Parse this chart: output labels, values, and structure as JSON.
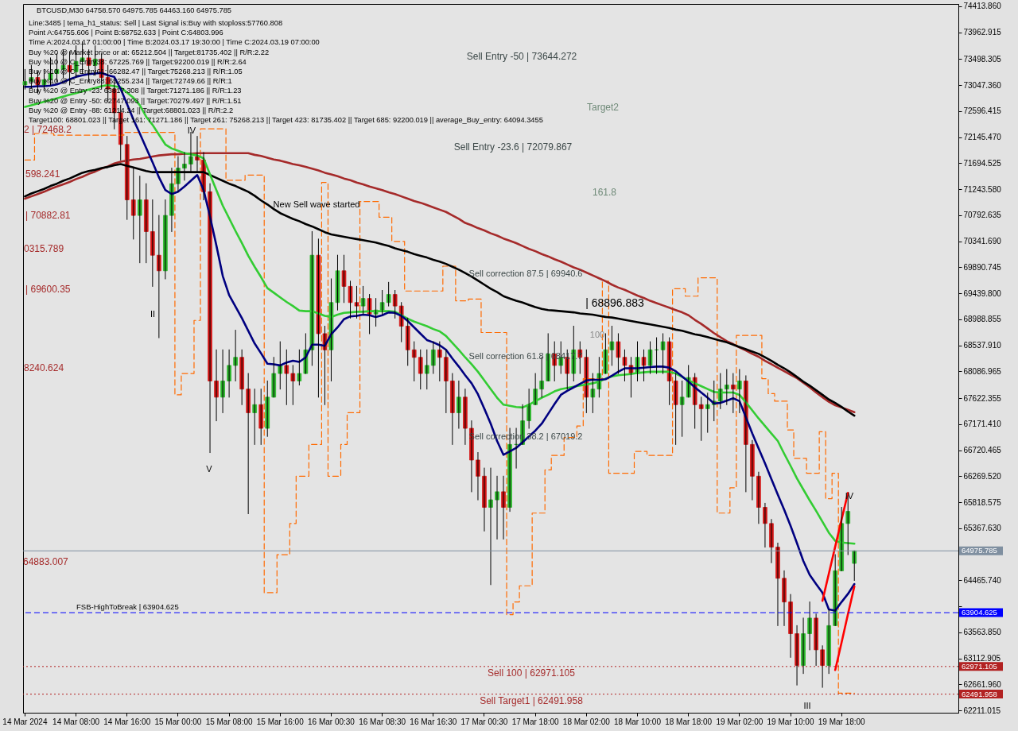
{
  "chart_data": {
    "type": "candlestick",
    "title": "BTCUSD,M30 64758.570 64975.785 64463.160 64975.785",
    "annotations": [
      "Line:3485 | tema_h1_status: Sell | Last Signal is:Buy with stoploss:57760.808",
      "Point A:64755.606 | Point B:68752.633 | Point C:64803.996",
      "Time A:2024.03.17 01:00:00 | Time B:2024.03.17 19:30:00 | Time C:2024.03.19 07:00:00",
      "Buy %20 @ Market price or at: 65212.504 || Target:81735.402 || R/R:2.22",
      "Buy %10 @ C_Entry38: 67225.769 || Target:92200.019 || R/R:2.64",
      "Buy %10 @ C_Entry61: 66282.47 || Target:75268.213 || R/R:1.05",
      "Buy %10 @ C_Entry88: 65255.234 || Target:72749.66 || R/R:1",
      "Buy %20 @ Entry -23: 63817.308 || Target:71271.186 || R/R:1.23",
      "Buy %20 @ Entry -50: 62747.093 || Target:70279.497 || R/R:1.51",
      "Buy %20 @ Entry -88: 61214.24 || Target:68801.023 || R/R:2.2",
      "Target100: 68801.023 || Target 161: 71271.186 || Target 261: 75268.213 || Target 423: 81735.402 || Target 685: 92200.019 || average_Buy_entry: 64094.3455",
      "Sell Entry -50 | 73644.272",
      "Target2",
      "Sell Entry -23.6 | 72079.867",
      "161.8",
      "New Sell wave started",
      "Sell correction 87.5 | 69940.6",
      "| 68896.883",
      "100",
      "Sell correction 61.8 | 68417.7",
      "Sell correction 38.2 | 67019.2",
      {
        "text": "FSB-HighToBreak | 63904.625",
        "y": 63904.625
      },
      {
        "text": "Sell 100 | 62971.105",
        "y": 62971.105
      },
      {
        "text": "Sell Target1 | 62491.958",
        "y": 62491.958
      },
      "2 | 72468.2",
      "598.241",
      "| 70882.81",
      "0315.789",
      "| 69600.35",
      "8240.624",
      "64883.007",
      "IV",
      "II",
      "V",
      "IV",
      "III"
    ],
    "categories": [
      "14 Mar 2024",
      null,
      null,
      null,
      null,
      null,
      null,
      null,
      "14 Mar 08:00",
      null,
      null,
      null,
      null,
      null,
      null,
      null,
      "14 Mar 16:00",
      null,
      null,
      null,
      null,
      null,
      null,
      null,
      "15 Mar 00:00",
      null,
      null,
      null,
      null,
      null,
      null,
      null,
      "15 Mar 08:00",
      null,
      null,
      null,
      null,
      null,
      null,
      null,
      "15 Mar 16:00",
      null,
      null,
      null,
      null,
      null,
      null,
      null,
      "16 Mar 00:30",
      null,
      null,
      null,
      null,
      null,
      null,
      null,
      "16 Mar 08:30",
      null,
      null,
      null,
      null,
      null,
      null,
      null,
      "16 Mar 16:30",
      null,
      null,
      null,
      null,
      null,
      null,
      null,
      "17 Mar 00:30",
      null,
      null,
      null,
      null,
      null,
      null,
      null,
      "17 Mar 18:00",
      null,
      null,
      null,
      null,
      null,
      null,
      null,
      "18 Mar 02:00",
      null,
      null,
      null,
      null,
      null,
      null,
      null,
      "18 Mar 10:00",
      null,
      null,
      null,
      null,
      null,
      null,
      null,
      "18 Mar 18:00",
      null,
      null,
      null,
      null,
      null,
      null,
      null,
      "19 Mar 02:00",
      null,
      null,
      null,
      null,
      null,
      null,
      null,
      "19 Mar 10:00",
      null,
      null,
      null,
      null,
      null,
      null,
      null,
      "19 Mar 18:00",
      null,
      null,
      null,
      null,
      null,
      null,
      null,
      null,
      null,
      null,
      null,
      null,
      null,
      null,
      null,
      null,
      null,
      null
    ],
    "ylim": [
      62170,
      74455
    ],
    "yticks": [
      {
        "value": 74413.86,
        "label": "74413.860"
      },
      73962.915,
      73498.305,
      {
        "value": 73047.36,
        "label": "73047.360"
      },
      72596.415,
      {
        "value": 72145.47,
        "label": "72145.470"
      },
      71694.525,
      {
        "value": 71243.58,
        "label": "71243.580"
      },
      70792.635,
      {
        "value": 70341.69,
        "label": "70341.690"
      },
      69890.745,
      {
        "value": 69439.8,
        "label": "69439.800"
      },
      68988.855,
      {
        "value": 68537.91,
        "label": "68537.910"
      },
      68086.965,
      67622.355,
      {
        "value": 67171.41,
        "label": "67171.410"
      },
      66720.465,
      {
        "value": 66269.52,
        "label": "66269.520"
      },
      65818.575,
      {
        "value": 65367.63,
        "label": "65367.630"
      },
      {
        "value": 64465.74,
        "label": "64465.740"
      },
      {
        "value": 64014.795,
        "label": null
      },
      {
        "value": 63563.85,
        "label": "63563.850"
      },
      63112.905,
      {
        "value": 62661.96,
        "label": "62661.960"
      },
      62211.015
    ],
    "ref_lines": [
      {
        "axis": "y",
        "value": 64975.785,
        "label": "64975.785",
        "color": "#7f8fa0"
      },
      {
        "axis": "y",
        "value": 63904.625,
        "label": "63904.625",
        "color": "#0000ff",
        "line_style": "dashed"
      },
      {
        "axis": "y",
        "value": 62971.105,
        "label": "62971.105",
        "color": "#b22222",
        "line_style": "dotted"
      },
      {
        "axis": "y",
        "value": 62491.958,
        "label": "62491.958",
        "color": "#b22222",
        "line_style": "dotted"
      }
    ],
    "color": "#000000",
    "ohlc": [
      [
        73050,
        73320,
        72980,
        73110
      ],
      [
        73110,
        73390,
        73000,
        73180
      ],
      [
        73180,
        73280,
        72910,
        73050
      ],
      [
        73050,
        73320,
        72950,
        73140
      ],
      [
        73140,
        73520,
        73050,
        73250
      ],
      [
        73250,
        73590,
        73110,
        73320
      ],
      [
        73320,
        73660,
        73180,
        73390
      ],
      [
        73390,
        73630,
        73050,
        73280
      ],
      [
        73280,
        73730,
        73180,
        73460
      ],
      [
        73460,
        73800,
        73250,
        73520
      ],
      [
        73520,
        73660,
        73110,
        73390
      ],
      [
        73390,
        73730,
        73220,
        73500
      ],
      [
        73500,
        73590,
        72980,
        73180
      ],
      [
        73180,
        73390,
        72770,
        72980
      ],
      [
        72980,
        73110,
        72290,
        72570
      ],
      [
        72570,
        72700,
        71750,
        72020
      ],
      [
        72020,
        72160,
        70720,
        71060
      ],
      [
        71060,
        71610,
        70380,
        70790
      ],
      [
        70790,
        71470,
        69970,
        71060
      ],
      [
        71060,
        71340,
        69970,
        70510
      ],
      [
        70510,
        71060,
        69560,
        70100
      ],
      [
        70100,
        70790,
        68670,
        69830
      ],
      [
        69830,
        71060,
        69690,
        70790
      ],
      [
        70790,
        71610,
        70510,
        71340
      ],
      [
        71340,
        71810,
        71200,
        71610
      ],
      [
        71610,
        71880,
        71400,
        71680
      ],
      [
        71680,
        72230,
        71540,
        71810
      ],
      [
        71810,
        72160,
        71540,
        71750
      ],
      [
        71750,
        71880,
        71060,
        71200
      ],
      [
        71200,
        71340,
        66680,
        67920
      ],
      [
        67920,
        68460,
        67230,
        67640
      ],
      [
        67640,
        68460,
        67370,
        67920
      ],
      [
        67920,
        68460,
        67640,
        68190
      ],
      [
        68190,
        68800,
        67920,
        68330
      ],
      [
        68330,
        68460,
        67510,
        67780
      ],
      [
        67780,
        68050,
        65620,
        67370
      ],
      [
        67370,
        67780,
        66820,
        67510
      ],
      [
        67510,
        67780,
        66820,
        67100
      ],
      [
        67100,
        67920,
        66960,
        67640
      ],
      [
        67640,
        68330,
        67640,
        68050
      ],
      [
        68050,
        68600,
        67780,
        68190
      ],
      [
        68190,
        68460,
        67510,
        68050
      ],
      [
        68050,
        68190,
        67510,
        67920
      ],
      [
        67920,
        68460,
        67850,
        68050
      ],
      [
        68050,
        68740,
        68050,
        68460
      ],
      [
        68460,
        70510,
        68190,
        70100
      ],
      [
        70100,
        70380,
        67640,
        68740
      ],
      [
        68740,
        68870,
        67510,
        68460
      ],
      [
        68460,
        69690,
        67920,
        69280
      ],
      [
        69280,
        70100,
        69150,
        69830
      ],
      [
        69830,
        70100,
        69280,
        69560
      ],
      [
        69560,
        69650,
        69010,
        69280
      ],
      [
        69280,
        69560,
        69010,
        69220
      ],
      [
        69220,
        69560,
        69080,
        69350
      ],
      [
        69350,
        69420,
        68740,
        69080
      ],
      [
        69080,
        69350,
        68870,
        69150
      ],
      [
        69150,
        69490,
        69080,
        69280
      ],
      [
        69280,
        69630,
        69220,
        69420
      ],
      [
        69420,
        69490,
        69010,
        69220
      ],
      [
        69220,
        69280,
        68600,
        68870
      ],
      [
        68870,
        69010,
        68190,
        68460
      ],
      [
        68460,
        68600,
        67920,
        68330
      ],
      [
        68330,
        68460,
        67780,
        68050
      ],
      [
        68050,
        68460,
        67780,
        68190
      ],
      [
        68190,
        68600,
        68050,
        68460
      ],
      [
        68460,
        68600,
        67920,
        68330
      ],
      [
        68330,
        68460,
        67370,
        67920
      ],
      [
        67920,
        68050,
        66820,
        67370
      ],
      [
        67370,
        67920,
        67100,
        67640
      ],
      [
        67640,
        67780,
        66820,
        67100
      ],
      [
        67100,
        67230,
        66000,
        66550
      ],
      [
        66550,
        66680,
        65860,
        66270
      ],
      [
        66270,
        66410,
        65320,
        65730
      ],
      [
        65730,
        66410,
        64390,
        65860
      ],
      [
        65860,
        66270,
        65180,
        66000
      ],
      [
        66000,
        66270,
        65180,
        65730
      ],
      [
        65730,
        67100,
        65660,
        66820
      ],
      [
        66820,
        67100,
        66410,
        66820
      ],
      [
        66820,
        67510,
        66820,
        67230
      ],
      [
        67230,
        67780,
        67100,
        67510
      ],
      [
        67510,
        68050,
        67510,
        67780
      ],
      [
        67780,
        68330,
        67640,
        67920
      ],
      [
        67920,
        68740,
        67920,
        68390
      ],
      [
        68390,
        68600,
        67920,
        68190
      ],
      [
        68190,
        68600,
        68050,
        68330
      ],
      [
        68330,
        68460,
        67780,
        68050
      ],
      [
        68050,
        68870,
        67920,
        68460
      ],
      [
        68460,
        68600,
        68050,
        68330
      ],
      [
        68330,
        68460,
        67370,
        67640
      ],
      [
        67640,
        68050,
        67370,
        67780
      ],
      [
        67780,
        68330,
        67640,
        68050
      ],
      [
        68050,
        68740,
        68050,
        68460
      ],
      [
        68460,
        68870,
        68190,
        68600
      ],
      [
        68600,
        68740,
        68050,
        68330
      ],
      [
        68330,
        68460,
        67920,
        68190
      ],
      [
        68190,
        68330,
        67640,
        68050
      ],
      [
        68050,
        68600,
        67920,
        68330
      ],
      [
        68330,
        68460,
        67920,
        68190
      ],
      [
        68190,
        68600,
        68050,
        68460
      ],
      [
        68460,
        68670,
        68050,
        68460
      ],
      [
        68460,
        68740,
        68050,
        68600
      ],
      [
        68600,
        68670,
        67510,
        67920
      ],
      [
        67920,
        68050,
        66820,
        67510
      ],
      [
        67510,
        67920,
        66960,
        67640
      ],
      [
        67640,
        68190,
        67640,
        67980
      ],
      [
        67980,
        68050,
        67100,
        67510
      ],
      [
        67510,
        67640,
        66890,
        67440
      ],
      [
        67440,
        67710,
        67030,
        67510
      ],
      [
        67510,
        67920,
        67230,
        67570
      ],
      [
        67570,
        68050,
        67440,
        67780
      ],
      [
        67780,
        68120,
        67510,
        67850
      ],
      [
        67850,
        68050,
        67370,
        67780
      ],
      [
        67780,
        68120,
        67370,
        67920
      ],
      [
        67920,
        68010,
        66000,
        66820
      ],
      [
        66820,
        66890,
        65860,
        66270
      ],
      [
        66270,
        66340,
        65450,
        65730
      ],
      [
        65730,
        65800,
        65040,
        65450
      ],
      [
        65450,
        65520,
        64770,
        65040
      ],
      [
        65040,
        65110,
        63680,
        64500
      ],
      [
        64500,
        64630,
        63680,
        64090
      ],
      [
        64090,
        64220,
        63130,
        63540
      ],
      [
        63540,
        63680,
        62650,
        62990
      ],
      [
        62990,
        63810,
        62850,
        63540
      ],
      [
        63540,
        64090,
        63260,
        63810
      ],
      [
        63810,
        63880,
        62990,
        63260
      ],
      [
        63260,
        63330,
        62610,
        62990
      ],
      [
        62990,
        63950,
        62850,
        63680
      ],
      [
        63680,
        64910,
        63680,
        64630
      ],
      [
        64630,
        65730,
        64630,
        65450
      ],
      [
        65450,
        65930,
        64910,
        65660
      ],
      [
        64758.57,
        64975.785,
        64463.16,
        64975.785
      ],
      null,
      null,
      null,
      null,
      null,
      null,
      null,
      null,
      null,
      null,
      null,
      null,
      null,
      null,
      null,
      null
    ],
    "colors": [
      "#2ab52a",
      "#2ab52a",
      "#d41515",
      "#2ab52a",
      "#2ab52a",
      "#2ab52a",
      "#2ab52a",
      "#d41515",
      "#2ab52a",
      "#2ab52a",
      "#d41515",
      "#2ab52a",
      "#d41515",
      "#d41515",
      "#d41515",
      "#d41515",
      "#d41515",
      "#d41515",
      "#2ab52a",
      "#d41515",
      "#d41515",
      "#d41515",
      "#2ab52a",
      "#2ab52a",
      "#2ab52a",
      "#2ab52a",
      "#2ab52a",
      "#d41515",
      "#d41515",
      "#d41515",
      "#d41515",
      "#2ab52a",
      "#2ab52a",
      "#2ab52a",
      "#d41515",
      "#d41515",
      "#2ab52a",
      "#d41515",
      "#2ab52a",
      "#2ab52a",
      "#2ab52a",
      "#d41515",
      "#d41515",
      "#2ab52a",
      "#2ab52a",
      "#2ab52a",
      "#d41515",
      "#d41515",
      "#2ab52a",
      "#2ab52a",
      "#d41515",
      "#d41515",
      "#d41515",
      "#2ab52a",
      "#d41515",
      "#2ab52a",
      "#2ab52a",
      "#2ab52a",
      "#d41515",
      "#d41515",
      "#d41515",
      "#d41515",
      "#d41515",
      "#2ab52a",
      "#2ab52a",
      "#d41515",
      "#d41515",
      "#d41515",
      "#2ab52a",
      "#d41515",
      "#d41515",
      "#d41515",
      "#d41515",
      "#2ab52a",
      "#2ab52a",
      "#d41515",
      "#2ab52a",
      "#2ab52a",
      "#2ab52a",
      "#2ab52a",
      "#2ab52a",
      "#2ab52a",
      "#2ab52a",
      "#d41515",
      "#2ab52a",
      "#d41515",
      "#2ab52a",
      "#d41515",
      "#d41515",
      "#2ab52a",
      "#2ab52a",
      "#2ab52a",
      "#2ab52a",
      "#d41515",
      "#d41515",
      "#d41515",
      "#2ab52a",
      "#d41515",
      "#2ab52a",
      "#2ab52a",
      "#2ab52a",
      "#d41515",
      "#d41515",
      "#2ab52a",
      "#2ab52a",
      "#d41515",
      "#d41515",
      "#2ab52a",
      "#2ab52a",
      "#2ab52a",
      "#2ab52a",
      "#d41515",
      "#2ab52a",
      "#d41515",
      "#d41515",
      "#d41515",
      "#d41515",
      "#d41515",
      "#d41515",
      "#d41515",
      "#d41515",
      "#d41515",
      "#2ab52a",
      "#2ab52a",
      "#d41515",
      "#d41515",
      "#2ab52a",
      "#2ab52a",
      "#2ab52a",
      "#2ab52a",
      "#2ab52a",
      null,
      null,
      null,
      null,
      null,
      null,
      null,
      null,
      null,
      null,
      null,
      null,
      null,
      null,
      null,
      null
    ],
    "series": [
      {
        "type": "step",
        "color": "#ff6a00",
        "line_style": "dashed",
        "values": [
          71750,
          71750,
          72210,
          72210,
          72210,
          72180,
          72180,
          72180,
          72180,
          72180,
          72180,
          72180,
          72180,
          72180,
          72180,
          72180,
          72230,
          72230,
          72230,
          72230,
          72230,
          72230,
          72230,
          72230,
          67680,
          68050,
          68050,
          68970,
          72290,
          72290,
          72290,
          72290,
          71400,
          71400,
          71400,
          71490,
          71490,
          71490,
          64250,
          64250,
          64910,
          64910,
          65450,
          66270,
          66270,
          66820,
          66820,
          71360,
          66270,
          66270,
          66820,
          67370,
          67370,
          71030,
          71030,
          71030,
          70760,
          70760,
          70340,
          70340,
          69480,
          69480,
          69480,
          69480,
          69480,
          69480,
          69910,
          69910,
          69310,
          69310,
          69340,
          69340,
          68760,
          68760,
          68760,
          68760,
          63870,
          64090,
          64370,
          64370,
          65630,
          65630,
          66380,
          66630,
          66630,
          66940,
          66940,
          67140,
          67960,
          67960,
          67960,
          69650,
          66320,
          66320,
          66320,
          66320,
          66700,
          66700,
          66630,
          66630,
          66630,
          66630,
          69520,
          69520,
          69390,
          69390,
          69710,
          69710,
          69710,
          65630,
          65630,
          66070,
          68710,
          68710,
          68710,
          68710,
          67960,
          67700,
          67570,
          67570,
          67070,
          66580,
          66580,
          66320,
          66320,
          67040,
          65880,
          66320,
          62510,
          62510,
          62510,
          null,
          null,
          null,
          null,
          null,
          null,
          null,
          null,
          null,
          null,
          null,
          null,
          null,
          null,
          null,
          null
        ]
      },
      {
        "type": "line",
        "color": "#a52a2a",
        "values": [
          71080,
          71120,
          71160,
          71200,
          71250,
          71290,
          71330,
          71370,
          71420,
          71460,
          71510,
          71550,
          71600,
          71640,
          71690,
          71720,
          71740,
          71760,
          71770,
          71790,
          71810,
          71830,
          71840,
          71850,
          71850,
          71860,
          71860,
          71870,
          71870,
          71870,
          71870,
          71870,
          71870,
          71870,
          71870,
          71870,
          71840,
          71820,
          71790,
          71760,
          71740,
          71710,
          71680,
          71660,
          71630,
          71600,
          71570,
          71530,
          71500,
          71470,
          71430,
          71400,
          71360,
          71330,
          71290,
          71260,
          71230,
          71190,
          71160,
          71120,
          71080,
          71040,
          71010,
          70970,
          70930,
          70890,
          70850,
          70790,
          70730,
          70660,
          70620,
          70570,
          70530,
          70480,
          70440,
          70390,
          70350,
          70310,
          70260,
          70210,
          70170,
          70120,
          70080,
          70030,
          69990,
          69940,
          69890,
          69850,
          69800,
          69750,
          69700,
          69650,
          69590,
          69540,
          69500,
          69450,
          69400,
          69360,
          69310,
          69270,
          69230,
          69190,
          69150,
          69110,
          69060,
          68980,
          68910,
          68830,
          68750,
          68680,
          68610,
          68560,
          68500,
          68450,
          68390,
          68340,
          68270,
          68210,
          68150,
          68090,
          68030,
          67970,
          67890,
          67810,
          67720,
          67640,
          67560,
          67500,
          67460,
          67420,
          67380,
          null,
          null,
          null,
          null,
          null,
          null,
          null,
          null,
          null,
          null,
          null,
          null,
          null,
          null,
          null,
          null
        ]
      },
      {
        "type": "line",
        "color": "#000000",
        "values": [
          71120,
          71170,
          71210,
          71250,
          71300,
          71340,
          71390,
          71430,
          71480,
          71530,
          71560,
          71580,
          71610,
          71630,
          71660,
          71680,
          71650,
          71620,
          71590,
          71560,
          71540,
          71540,
          71540,
          71540,
          71540,
          71540,
          71540,
          71540,
          71540,
          71490,
          71440,
          71390,
          71340,
          71300,
          71250,
          71200,
          71130,
          71050,
          70980,
          70900,
          70830,
          70780,
          70730,
          70690,
          70640,
          70600,
          70550,
          70500,
          70460,
          70440,
          70420,
          70400,
          70380,
          70360,
          70340,
          70320,
          70290,
          70260,
          70220,
          70190,
          70160,
          70120,
          70090,
          70060,
          70020,
          69990,
          69950,
          69900,
          69850,
          69790,
          69730,
          69660,
          69590,
          69520,
          69460,
          69390,
          69350,
          69310,
          69280,
          69240,
          69200,
          69170,
          69150,
          69140,
          69130,
          69120,
          69110,
          69090,
          69080,
          69070,
          69050,
          69030,
          69020,
          69000,
          68980,
          68960,
          68940,
          68920,
          68900,
          68880,
          68860,
          68840,
          68810,
          68790,
          68760,
          68730,
          68710,
          68680,
          68650,
          68620,
          68590,
          68550,
          68510,
          68470,
          68430,
          68390,
          68330,
          68270,
          68200,
          68140,
          68070,
          67990,
          67910,
          67840,
          67760,
          67680,
          67600,
          67540,
          67470,
          67390,
          67320,
          null,
          null,
          null,
          null,
          null,
          null,
          null,
          null,
          null,
          null,
          null,
          null,
          null,
          null,
          null,
          null
        ]
      },
      {
        "type": "line",
        "color": "#33cc33",
        "values": [
          72670,
          72700,
          72730,
          72760,
          72790,
          72820,
          72850,
          72880,
          72910,
          72940,
          72970,
          73000,
          73030,
          73050,
          73030,
          73010,
          72920,
          72830,
          72700,
          72500,
          72360,
          72190,
          72020,
          71950,
          71910,
          71870,
          71850,
          71830,
          71780,
          71500,
          71230,
          70960,
          70740,
          70520,
          70310,
          70090,
          69900,
          69720,
          69530,
          69450,
          69370,
          69290,
          69220,
          69140,
          69130,
          69130,
          69090,
          69050,
          69030,
          69070,
          69100,
          69110,
          69120,
          69120,
          69130,
          69130,
          69130,
          69130,
          69120,
          69060,
          69000,
          68950,
          68910,
          68870,
          68820,
          68780,
          68700,
          68580,
          68460,
          68330,
          68210,
          68080,
          67930,
          67780,
          67630,
          67510,
          67490,
          67470,
          67460,
          67510,
          67570,
          67630,
          67680,
          67740,
          67780,
          67800,
          67820,
          67840,
          67860,
          67880,
          67910,
          67960,
          68000,
          68020,
          68030,
          68040,
          68060,
          68070,
          68080,
          68080,
          68080,
          68080,
          68050,
          67990,
          67930,
          67880,
          67830,
          67780,
          67730,
          67720,
          67720,
          67720,
          67680,
          67550,
          67410,
          67270,
          67140,
          67010,
          66880,
          66660,
          66450,
          66230,
          66040,
          65850,
          65670,
          65480,
          65290,
          65150,
          65120,
          65110,
          65100,
          null,
          null,
          null,
          null,
          null,
          null,
          null,
          null,
          null,
          null,
          null,
          null,
          null,
          null,
          null,
          null
        ]
      },
      {
        "type": "line",
        "color": "#000080",
        "values": [
          73020,
          73020,
          73030,
          73030,
          73040,
          73060,
          73100,
          73150,
          73190,
          73220,
          73240,
          73250,
          73260,
          73220,
          73190,
          72980,
          72720,
          72450,
          72210,
          71960,
          71710,
          71450,
          71230,
          71160,
          71200,
          71290,
          71390,
          71490,
          71230,
          70770,
          70270,
          69740,
          69410,
          69210,
          69010,
          68790,
          68570,
          68400,
          68220,
          68210,
          68190,
          68240,
          68270,
          68250,
          68330,
          68550,
          68550,
          68530,
          68730,
          68850,
          68990,
          69040,
          69050,
          69070,
          69060,
          69030,
          69060,
          69110,
          69100,
          69050,
          68960,
          68850,
          68740,
          68630,
          68590,
          68540,
          68460,
          68310,
          68170,
          68020,
          67880,
          67690,
          67440,
          67180,
          66880,
          66640,
          66700,
          66760,
          66860,
          66960,
          67060,
          67180,
          67350,
          67520,
          67680,
          67750,
          67810,
          67870,
          67930,
          67940,
          67940,
          67950,
          68010,
          68080,
          68140,
          68140,
          68140,
          68150,
          68160,
          68170,
          68170,
          68150,
          68090,
          68000,
          67910,
          67810,
          67720,
          67630,
          67530,
          67540,
          67580,
          67620,
          67570,
          67290,
          67010,
          66750,
          66490,
          66220,
          65950,
          65690,
          65410,
          65110,
          64800,
          64560,
          64400,
          64250,
          63960,
          63940,
          64090,
          64230,
          64400,
          null,
          null,
          null,
          null,
          null,
          null,
          null,
          null,
          null,
          null,
          null,
          null,
          null,
          null,
          null,
          null
        ]
      },
      {
        "type": "line",
        "color": "#ff0000",
        "values": [
          null,
          null,
          null,
          null,
          null,
          null,
          null,
          null,
          null,
          null,
          null,
          null,
          null,
          null,
          null,
          null,
          null,
          null,
          null,
          null,
          null,
          null,
          null,
          null,
          null,
          null,
          null,
          null,
          null,
          null,
          null,
          null,
          null,
          null,
          null,
          null,
          null,
          null,
          null,
          null,
          null,
          null,
          null,
          null,
          null,
          null,
          null,
          null,
          null,
          null,
          null,
          null,
          null,
          null,
          null,
          null,
          null,
          null,
          null,
          null,
          null,
          null,
          null,
          null,
          null,
          null,
          null,
          null,
          null,
          null,
          null,
          null,
          null,
          null,
          null,
          null,
          null,
          null,
          null,
          null,
          null,
          null,
          null,
          null,
          null,
          null,
          null,
          null,
          null,
          null,
          null,
          null,
          null,
          null,
          null,
          null,
          null,
          null,
          null,
          null,
          null,
          null,
          null,
          null,
          null,
          null,
          null,
          null,
          null,
          null,
          null,
          null,
          null,
          null,
          null,
          null,
          null,
          null,
          null,
          null,
          null,
          null,
          null,
          null,
          null,
          64110,
          64580,
          65050,
          65520,
          65980,
          null,
          null,
          null,
          null,
          null,
          null,
          null,
          null,
          null,
          null,
          null,
          null,
          null,
          null,
          null,
          null,
          null
        ]
      },
      {
        "type": "line",
        "color": "#ff0000",
        "values": [
          null,
          null,
          null,
          null,
          null,
          null,
          null,
          null,
          null,
          null,
          null,
          null,
          null,
          null,
          null,
          null,
          null,
          null,
          null,
          null,
          null,
          null,
          null,
          null,
          null,
          null,
          null,
          null,
          null,
          null,
          null,
          null,
          null,
          null,
          null,
          null,
          null,
          null,
          null,
          null,
          null,
          null,
          null,
          null,
          null,
          null,
          null,
          null,
          null,
          null,
          null,
          null,
          null,
          null,
          null,
          null,
          null,
          null,
          null,
          null,
          null,
          null,
          null,
          null,
          null,
          null,
          null,
          null,
          null,
          null,
          null,
          null,
          null,
          null,
          null,
          null,
          null,
          null,
          null,
          null,
          null,
          null,
          null,
          null,
          null,
          null,
          null,
          null,
          null,
          null,
          null,
          null,
          null,
          null,
          null,
          null,
          null,
          null,
          null,
          null,
          null,
          null,
          null,
          null,
          null,
          null,
          null,
          null,
          null,
          null,
          null,
          null,
          null,
          null,
          null,
          null,
          null,
          null,
          null,
          null,
          null,
          null,
          null,
          null,
          null,
          null,
          null,
          62910,
          63390,
          63880,
          64360,
          null,
          null,
          null,
          null,
          null,
          null,
          null,
          null,
          null,
          null,
          null,
          null,
          null,
          null,
          null,
          null
        ]
      }
    ]
  }
}
